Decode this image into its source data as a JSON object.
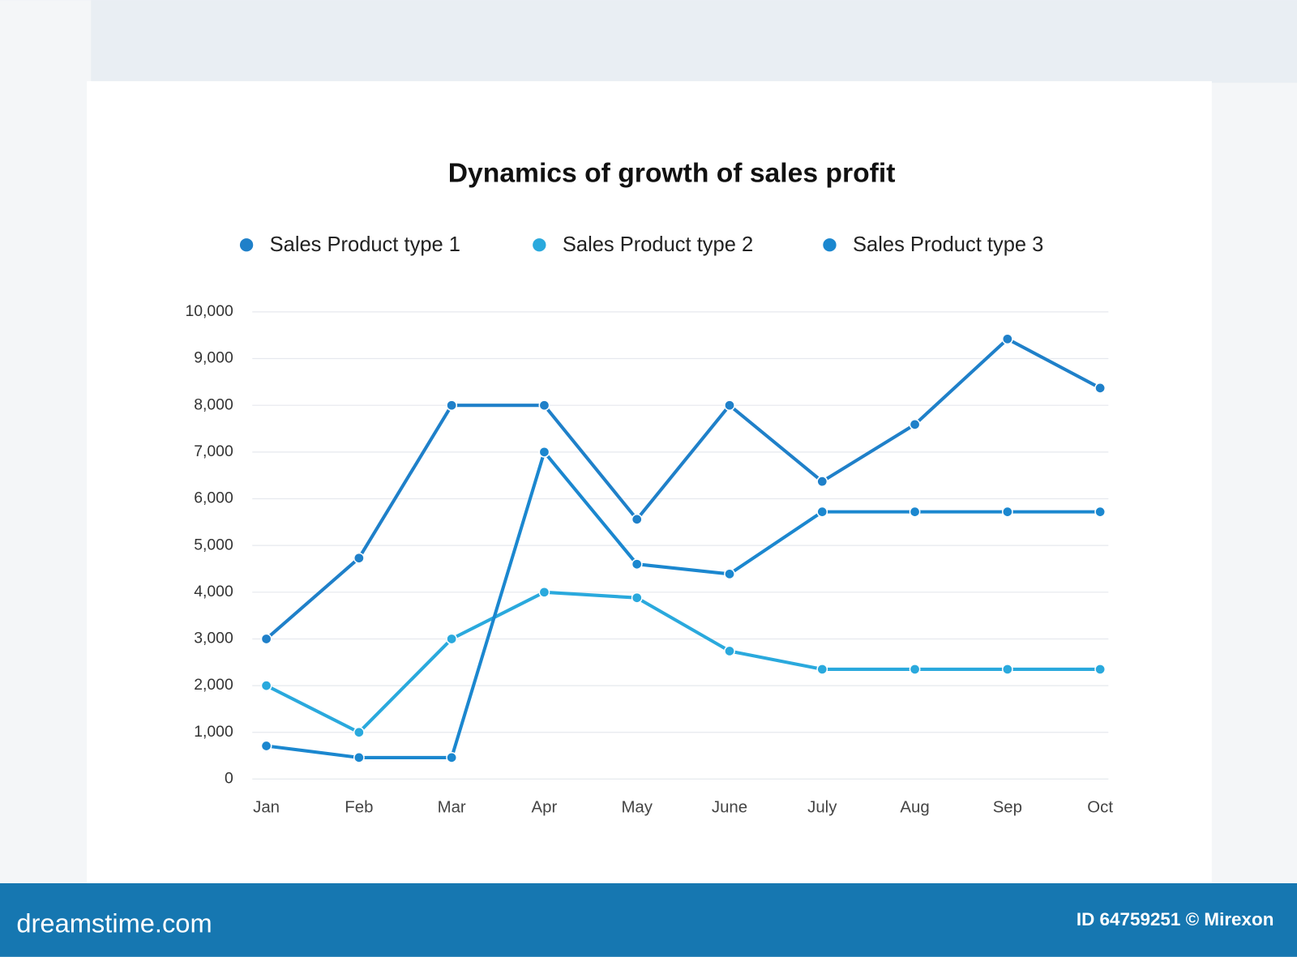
{
  "chart_data": {
    "type": "line",
    "title": "Dynamics of growth of sales profit",
    "categories": [
      "Jan",
      "Feb",
      "Mar",
      "Apr",
      "May",
      "June",
      "July",
      "Aug",
      "Sep",
      "Oct"
    ],
    "series": [
      {
        "name": "Sales Product type 1",
        "color": "#1f80c9",
        "values": [
          3000,
          4730,
          8000,
          8000,
          5560,
          8000,
          6370,
          7590,
          9420,
          8370
        ]
      },
      {
        "name": "Sales Product type 2",
        "color": "#2aa9dd",
        "values": [
          2000,
          1000,
          3000,
          4000,
          3880,
          2740,
          2350,
          2350,
          2350,
          2350
        ]
      },
      {
        "name": "Sales Product type 3",
        "color": "#1b87cf",
        "values": [
          710,
          460,
          460,
          7000,
          4600,
          4390,
          5720,
          5720,
          5720,
          5720
        ]
      }
    ],
    "ylim": [
      0,
      10000
    ],
    "yticks": [
      0,
      {
        "value": 1000,
        "label": "1,000"
      },
      {
        "value": 2000,
        "label": "2,000"
      },
      {
        "value": 3000,
        "label": "3,000"
      },
      {
        "value": 4000,
        "label": "4,000"
      },
      {
        "value": 5000,
        "label": "5,000"
      },
      {
        "value": 6000,
        "label": "6,000"
      },
      {
        "value": 7000,
        "label": "7,000"
      },
      {
        "value": 8000,
        "label": "8,000"
      },
      {
        "value": 9000,
        "label": "9,000"
      },
      {
        "value": 10000,
        "label": "10,000"
      }
    ],
    "grid": true,
    "legend": "top"
  },
  "footer": {
    "brand": "dreamstime.com",
    "credit": "ID 64759251 © Mirexon"
  }
}
